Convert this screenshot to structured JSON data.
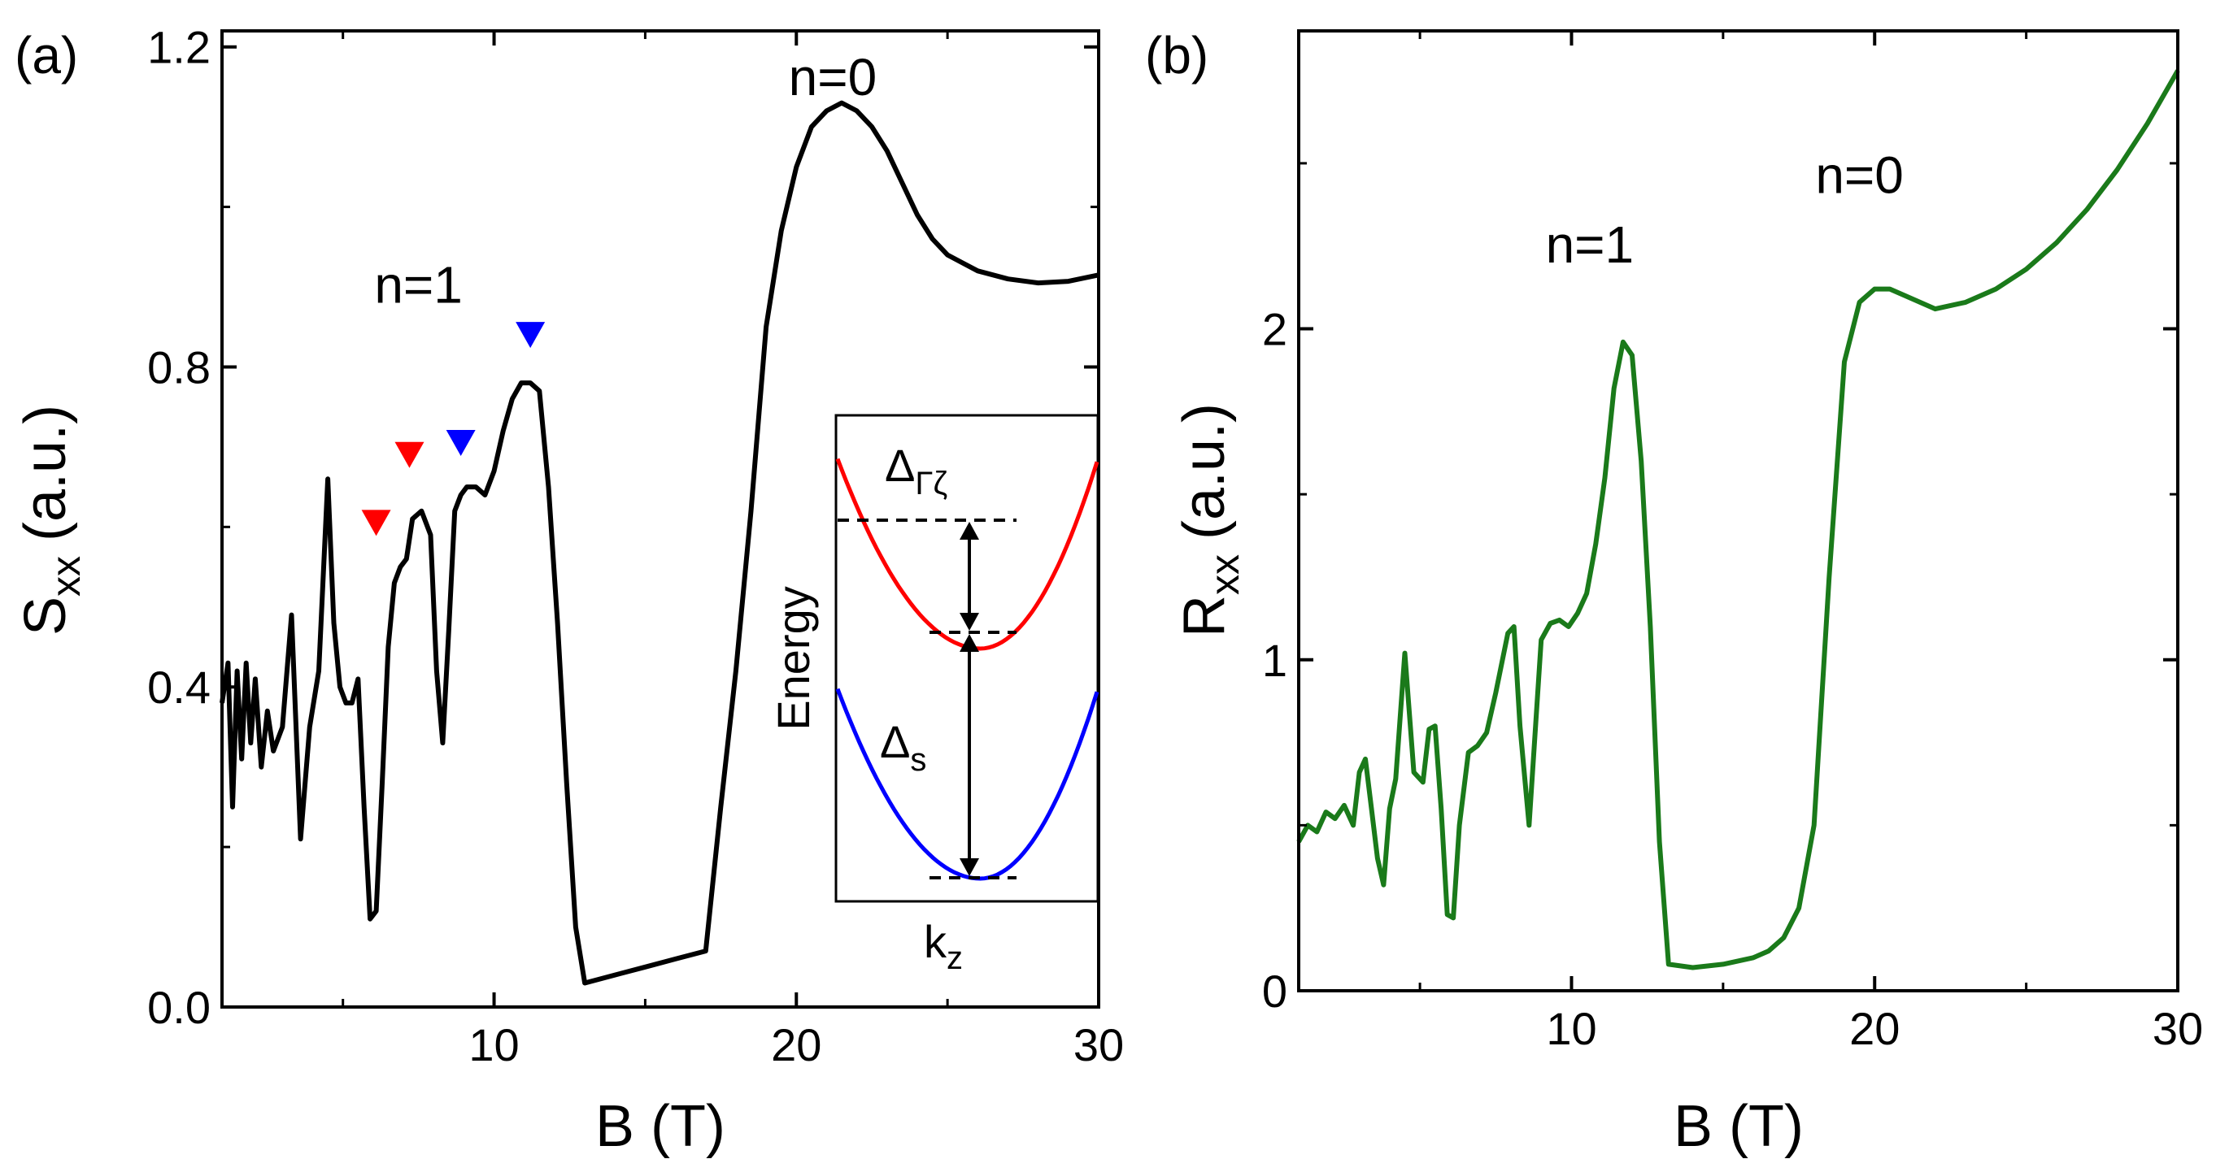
{
  "chart_data": [
    {
      "type": "line",
      "panel_label": "(a)",
      "xlabel": "B (T)",
      "ylabel_main": "S",
      "ylabel_sub": "xx",
      "ylabel_units": "(a.u.)",
      "xlim": [
        1,
        30
      ],
      "ylim": [
        0,
        1.22
      ],
      "xticks": [
        10,
        20,
        30
      ],
      "yticks": [
        0.0,
        0.4,
        0.8,
        1.2
      ],
      "ytick_labels": [
        "0.0",
        "0.4",
        "0.8",
        "1.2"
      ],
      "series": [
        {
          "color": "#000000",
          "x": [
            1,
            1.2,
            1.35,
            1.5,
            1.65,
            1.8,
            1.95,
            2.1,
            2.3,
            2.5,
            2.7,
            3.0,
            3.3,
            3.6,
            3.9,
            4.2,
            4.5,
            4.7,
            4.9,
            5.1,
            5.3,
            5.5,
            5.7,
            5.9,
            6.1,
            6.3,
            6.5,
            6.7,
            6.9,
            7.1,
            7.3,
            7.6,
            7.9,
            8.1,
            8.3,
            8.5,
            8.7,
            8.9,
            9.1,
            9.4,
            9.7,
            10.0,
            10.3,
            10.6,
            10.9,
            11.2,
            11.5,
            11.8,
            12.1,
            12.4,
            12.7,
            13.0,
            14.0,
            15.0,
            16.0,
            17.0,
            17.5,
            18.0,
            18.5,
            19.0,
            19.5,
            20.0,
            20.5,
            21.0,
            21.5,
            22.0,
            22.5,
            23.0,
            23.5,
            24.0,
            24.5,
            25.0,
            25.5,
            26.0,
            27.0,
            28.0,
            29.0,
            30.0
          ],
          "y": [
            0.38,
            0.43,
            0.25,
            0.42,
            0.31,
            0.43,
            0.33,
            0.41,
            0.3,
            0.37,
            0.32,
            0.35,
            0.49,
            0.21,
            0.35,
            0.42,
            0.66,
            0.48,
            0.4,
            0.38,
            0.38,
            0.41,
            0.25,
            0.11,
            0.12,
            0.28,
            0.45,
            0.53,
            0.55,
            0.56,
            0.61,
            0.62,
            0.59,
            0.42,
            0.33,
            0.47,
            0.62,
            0.64,
            0.65,
            0.65,
            0.64,
            0.67,
            0.72,
            0.76,
            0.78,
            0.78,
            0.77,
            0.65,
            0.48,
            0.28,
            0.1,
            0.03,
            0.04,
            0.05,
            0.06,
            0.07,
            0.25,
            0.42,
            0.62,
            0.85,
            0.97,
            1.05,
            1.1,
            1.12,
            1.13,
            1.12,
            1.1,
            1.07,
            1.03,
            0.99,
            0.96,
            0.94,
            0.93,
            0.92,
            0.91,
            0.905,
            0.907,
            0.915
          ]
        }
      ],
      "markers": [
        {
          "x": 6.1,
          "y": 0.605,
          "color": "#ff0000"
        },
        {
          "x": 7.2,
          "y": 0.69,
          "color": "#ff0000"
        },
        {
          "x": 8.9,
          "y": 0.705,
          "color": "#0000ff"
        },
        {
          "x": 11.2,
          "y": 0.84,
          "color": "#0000ff"
        }
      ],
      "annotations": [
        {
          "text": "n=1",
          "x": 7.5,
          "y": 0.88
        },
        {
          "text": "n=0",
          "x": 21.2,
          "y": 1.14
        }
      ],
      "inset": {
        "ylabel": "Energy",
        "xlabel_main": "k",
        "xlabel_sub": "z",
        "gap_top_main": "Δ",
        "gap_top_sub": "Γζ",
        "gap_bottom_main": "Δ",
        "gap_bottom_sub": "s",
        "upper_band_color": "#ff0000",
        "lower_band_color": "#0000ff",
        "upper_band": {
          "min_x": 0.55,
          "min_y": 0.53,
          "curv": 1.7
        },
        "lower_band": {
          "min_x": 0.55,
          "min_y": 0.0,
          "curv": 1.7
        }
      }
    },
    {
      "type": "line",
      "panel_label": "(b)",
      "xlabel": "B (T)",
      "ylabel_main": "R",
      "ylabel_sub": "xx",
      "ylabel_units": "(a.u.)",
      "xlim": [
        1,
        30
      ],
      "ylim": [
        0,
        2.9
      ],
      "xticks": [
        10,
        20,
        30
      ],
      "yticks": [
        0,
        1,
        2
      ],
      "ytick_labels": [
        "0",
        "1",
        "2"
      ],
      "series": [
        {
          "color": "#1a7a1a",
          "x": [
            1,
            1.3,
            1.6,
            1.9,
            2.2,
            2.5,
            2.8,
            3.0,
            3.2,
            3.4,
            3.6,
            3.8,
            4.0,
            4.2,
            4.5,
            4.8,
            5.1,
            5.3,
            5.5,
            5.7,
            5.9,
            6.1,
            6.3,
            6.6,
            6.9,
            7.2,
            7.5,
            7.9,
            8.1,
            8.3,
            8.6,
            9.0,
            9.3,
            9.6,
            9.9,
            10.2,
            10.5,
            10.8,
            11.1,
            11.4,
            11.7,
            12.0,
            12.3,
            12.6,
            12.9,
            13.2,
            14.0,
            15.0,
            16.0,
            16.5,
            17.0,
            17.5,
            18.0,
            18.5,
            19.0,
            19.5,
            20.0,
            20.5,
            21.0,
            22.0,
            23.0,
            24.0,
            25.0,
            26.0,
            27.0,
            28.0,
            29.0,
            30.0
          ],
          "y": [
            0.45,
            0.5,
            0.48,
            0.54,
            0.52,
            0.56,
            0.5,
            0.66,
            0.7,
            0.55,
            0.4,
            0.32,
            0.55,
            0.64,
            1.02,
            0.66,
            0.63,
            0.79,
            0.8,
            0.55,
            0.23,
            0.22,
            0.5,
            0.72,
            0.74,
            0.78,
            0.9,
            1.08,
            1.1,
            0.8,
            0.5,
            1.06,
            1.11,
            1.12,
            1.1,
            1.14,
            1.2,
            1.35,
            1.55,
            1.82,
            1.96,
            1.92,
            1.6,
            1.1,
            0.45,
            0.08,
            0.07,
            0.08,
            0.1,
            0.12,
            0.16,
            0.25,
            0.5,
            1.25,
            1.9,
            2.08,
            2.12,
            2.12,
            2.1,
            2.06,
            2.08,
            2.12,
            2.18,
            2.26,
            2.36,
            2.48,
            2.62,
            2.78
          ]
        }
      ],
      "annotations": [
        {
          "text": "n=1",
          "x": 10.6,
          "y": 2.2
        },
        {
          "text": "n=0",
          "x": 19.5,
          "y": 2.41
        }
      ]
    }
  ]
}
